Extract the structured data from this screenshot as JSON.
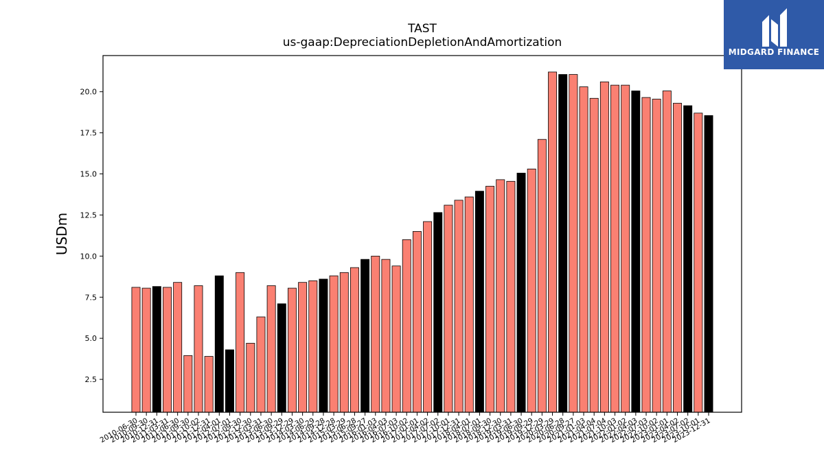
{
  "header": {
    "title": "TAST",
    "subtitle": "us-gaap:DepreciationDepletionAndAmortization"
  },
  "logo": {
    "text": "MIDGARD FINANCE",
    "background": "#2f5aa8"
  },
  "chart_data": {
    "type": "bar",
    "ylabel": "USDm",
    "xlabel": "",
    "ylim": [
      0.5,
      22.2
    ],
    "yticks": [
      2.5,
      5.0,
      7.5,
      10.0,
      12.5,
      15.0,
      17.5,
      20.0
    ],
    "grid": false,
    "colors": {
      "quarter": "#fa8072",
      "year_end": "#000000",
      "edge": "#000000"
    },
    "categories": [
      "2010-06-30",
      "2010-09-30",
      "2010-12-31",
      "2011-03-31",
      "2011-06-30",
      "2011-09-30",
      "2011-10-02",
      "2011-12-31",
      "2012-04-01",
      "2012-07-01",
      "2012-09-30",
      "2012-12-30",
      "2013-03-31",
      "2013-06-30",
      "2013-09-29",
      "2013-12-29",
      "2014-03-30",
      "2014-06-29",
      "2014-09-28",
      "2014-12-28",
      "2015-03-29",
      "2015-06-28",
      "2015-09-27",
      "2016-01-03",
      "2016-04-03",
      "2016-07-03",
      "2016-10-02",
      "2017-01-01",
      "2017-04-02",
      "2017-07-02",
      "2017-10-01",
      "2017-12-31",
      "2018-04-01",
      "2018-07-01",
      "2018-09-30",
      "2018-12-30",
      "2019-03-31",
      "2019-06-30",
      "2019-09-29",
      "2019-12-29",
      "2020-03-29",
      "2020-06-28",
      "2020-09-27",
      "2021-01-03",
      "2021-04-04",
      "2021-07-04",
      "2021-10-03",
      "2022-01-02",
      "2022-04-03",
      "2022-07-03",
      "2022-10-02",
      "2023-01-01",
      "2023-04-02",
      "2023-07-02",
      "2023-10-01",
      "2023-12-31"
    ],
    "tick_labels": [
      "2010-06-30",
      "2010-09-30",
      "2010-12-31",
      "2011-03-31",
      "2011-06-30",
      "2011-09-30",
      "2011-10-02",
      "2011-12-31",
      "2012-04-01",
      "2012-07-01",
      "2012-09-30",
      "2012-12-30",
      "2013-03-31",
      "2013-06-30",
      "2013-09-29",
      "2013-12-29",
      "2014-03-30",
      "2014-06-29",
      "2014-09-28",
      "2014-12-28",
      "2015-03-29",
      "2015-06-28",
      "2015-09-27",
      "2016-01-03",
      "2016-04-03",
      "2016-07-03",
      "2016-10-02",
      "2017-01-01",
      "2017-04-02",
      "2017-07-02",
      "2017-10-01",
      "2017-12-31",
      "2018-04-01",
      "2018-07-01",
      "2018-09-30",
      "2018-12-30",
      "2019-03-31",
      "2019-06-30",
      "2019-09-29",
      "2019-12-29",
      "2020-03-29",
      "2020-06-28",
      "2020-09-27",
      "2021-01-03",
      "2021-04-04",
      "2021-07-04",
      "2021-10-03",
      "2022-01-02",
      "2022-04-03",
      "2022-07-03",
      "2022-10-02",
      "2023-01-01",
      "2023-04-02",
      "2023-07-02",
      "2023-10-01",
      "2023-12-31"
    ],
    "values": [
      8.1,
      8.05,
      8.15,
      8.1,
      8.4,
      3.95,
      8.2,
      3.9,
      8.8,
      4.3,
      9.0,
      4.7,
      6.3,
      8.2,
      7.1,
      8.05,
      8.4,
      8.5,
      8.6,
      8.8,
      9.0,
      9.3,
      9.8,
      10.0,
      9.8,
      9.4,
      11.0,
      11.5,
      12.1,
      12.65,
      13.1,
      13.4,
      13.6,
      13.95,
      14.25,
      14.65,
      14.55,
      15.05,
      15.3,
      17.1,
      21.2,
      21.05,
      21.05,
      20.3,
      19.6,
      20.6,
      20.4,
      20.4,
      20.05,
      19.65,
      19.55,
      20.05,
      19.3,
      19.15,
      18.7,
      18.55
    ],
    "year_end": [
      false,
      false,
      true,
      false,
      false,
      false,
      false,
      false,
      true,
      true,
      false,
      false,
      false,
      false,
      true,
      false,
      false,
      false,
      true,
      false,
      false,
      false,
      true,
      false,
      false,
      false,
      false,
      false,
      false,
      true,
      false,
      false,
      false,
      true,
      false,
      false,
      false,
      true,
      false,
      false,
      false,
      true,
      false,
      false,
      false,
      false,
      false,
      false,
      true,
      false,
      false,
      false,
      false,
      true,
      false,
      true
    ]
  }
}
